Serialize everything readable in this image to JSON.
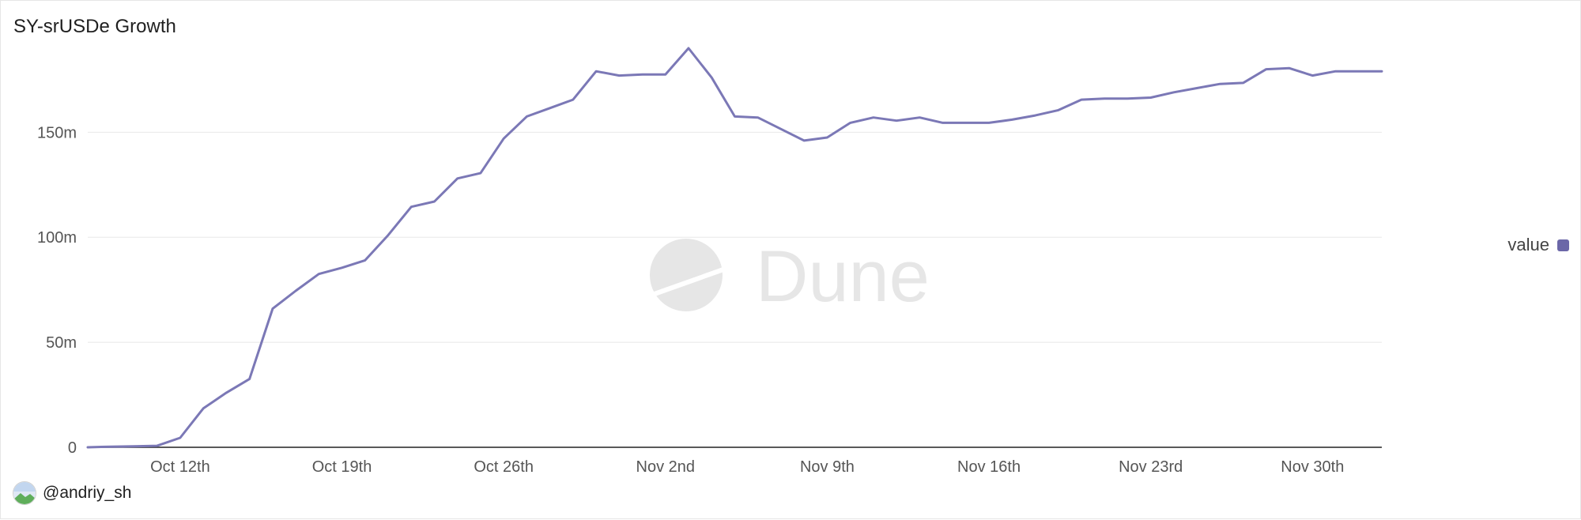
{
  "chart_title": "SY-srUSDe Growth",
  "legend": {
    "label": "value",
    "color": "#6b67a8"
  },
  "author": "@andriy_sh",
  "watermark": "Dune",
  "colors": {
    "line": "#7b78b6",
    "grid": "#e8e8e8",
    "axis": "#222222",
    "tick_text": "#555555",
    "watermark": "#e6e6e6"
  },
  "chart_data": {
    "type": "line",
    "title": "SY-srUSDe Growth",
    "xlabel": "",
    "ylabel": "",
    "x_start": "Oct 8th",
    "x_end": "Dec 4th",
    "x_ticks": [
      {
        "label": "Oct 12th",
        "day": 4
      },
      {
        "label": "Oct 19th",
        "day": 11
      },
      {
        "label": "Oct 26th",
        "day": 18
      },
      {
        "label": "Nov 2nd",
        "day": 25
      },
      {
        "label": "Nov 9th",
        "day": 32
      },
      {
        "label": "Nov 16th",
        "day": 39
      },
      {
        "label": "Nov 23rd",
        "day": 46
      },
      {
        "label": "Nov 30th",
        "day": 53
      }
    ],
    "y_ticks": [
      {
        "label": "0",
        "value": 0
      },
      {
        "label": "50m",
        "value": 50
      },
      {
        "label": "100m",
        "value": 100
      },
      {
        "label": "150m",
        "value": 150
      }
    ],
    "ylim": [
      0,
      190
    ],
    "grid": true,
    "legend_position": "right",
    "series": [
      {
        "name": "value",
        "unit": "m",
        "values": [
          0,
          0.3,
          0.5,
          0.7,
          4.5,
          18.5,
          26,
          32.5,
          66,
          74.5,
          82.5,
          85.5,
          89,
          101,
          114.5,
          117,
          128,
          130.5,
          147,
          157.5,
          161.5,
          165.5,
          179,
          177,
          177.5,
          177.5,
          190,
          176,
          157.5,
          157,
          151.5,
          146,
          147.5,
          154.5,
          157,
          155.5,
          157,
          154.5,
          154.5,
          154.5,
          156,
          158,
          160.5,
          165.5,
          166,
          166,
          166.5,
          169,
          171,
          173,
          173.5,
          180,
          180.5,
          177,
          179,
          179,
          179
        ]
      }
    ]
  }
}
